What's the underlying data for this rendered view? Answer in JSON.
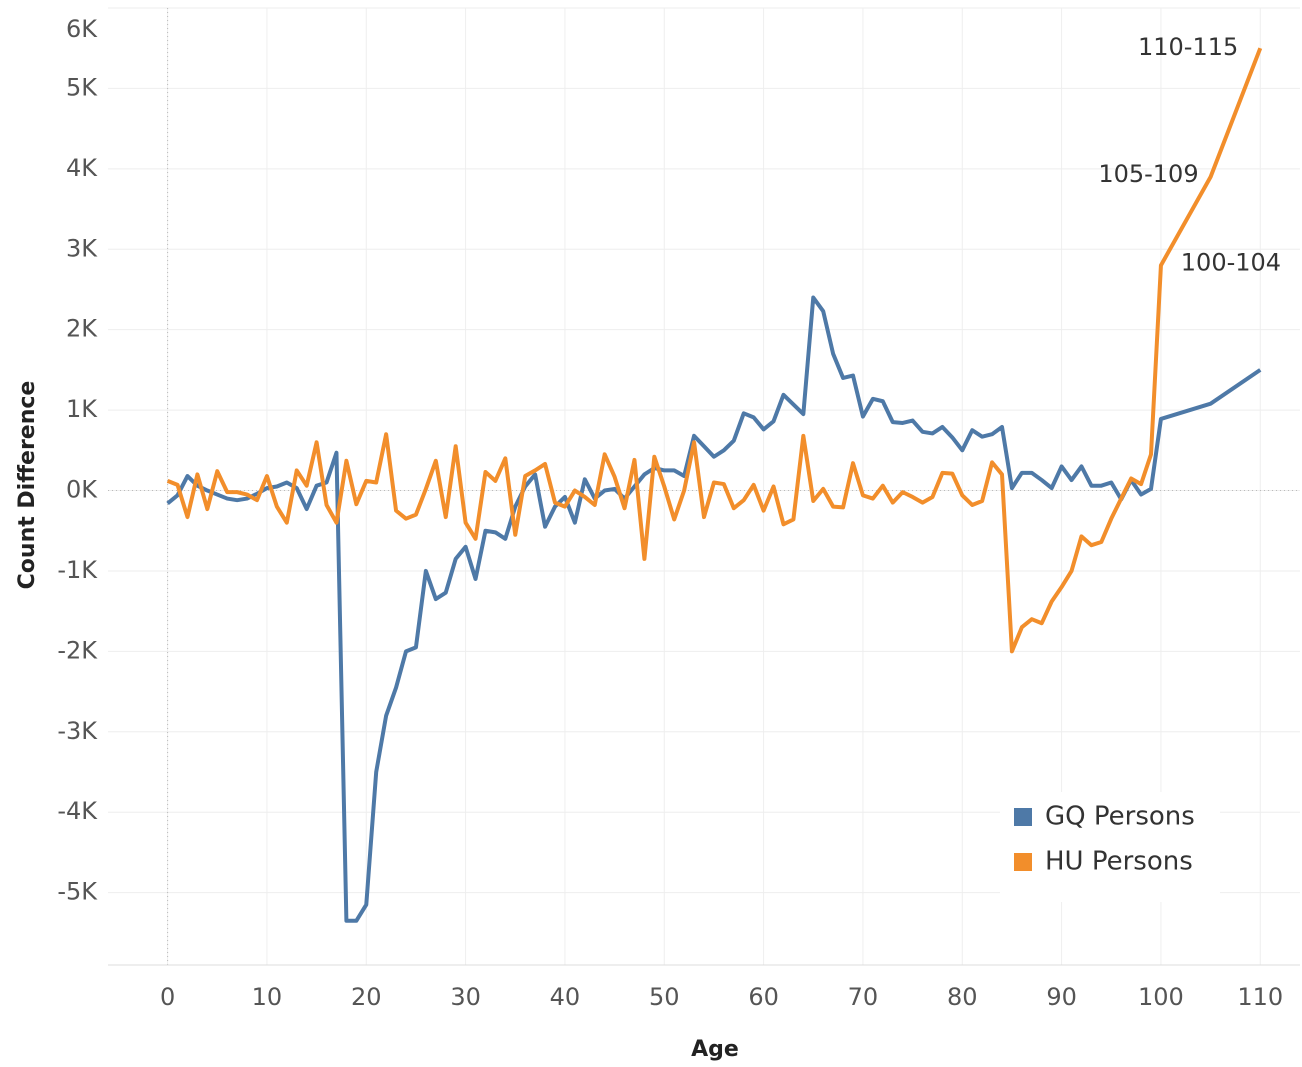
{
  "chart_data": {
    "type": "line",
    "xlabel": "Age",
    "ylabel": "Count Difference",
    "x": [
      0,
      1,
      2,
      3,
      4,
      5,
      6,
      7,
      8,
      9,
      10,
      11,
      12,
      13,
      14,
      15,
      16,
      17,
      18,
      19,
      20,
      21,
      22,
      23,
      24,
      25,
      26,
      27,
      28,
      29,
      30,
      31,
      32,
      33,
      34,
      35,
      36,
      37,
      38,
      39,
      40,
      41,
      42,
      43,
      44,
      45,
      46,
      47,
      48,
      49,
      50,
      51,
      52,
      53,
      54,
      55,
      56,
      57,
      58,
      59,
      60,
      61,
      62,
      63,
      64,
      65,
      66,
      67,
      68,
      69,
      70,
      71,
      72,
      73,
      74,
      75,
      76,
      77,
      78,
      79,
      80,
      81,
      82,
      83,
      84,
      85,
      86,
      87,
      88,
      89,
      90,
      91,
      92,
      93,
      94,
      95,
      96,
      97,
      98,
      99,
      100,
      105,
      110
    ],
    "series": [
      {
        "name": "GQ Persons",
        "color": "#4e79a7",
        "values": [
          -160,
          -60,
          180,
          60,
          0,
          -50,
          -100,
          -120,
          -100,
          -40,
          30,
          50,
          100,
          30,
          -230,
          60,
          100,
          470,
          -5350,
          -5350,
          -5150,
          -3500,
          -2800,
          -2450,
          -2000,
          -1950,
          -1000,
          -1350,
          -1270,
          -850,
          -700,
          -1100,
          -500,
          -520,
          -600,
          -200,
          50,
          200,
          -450,
          -200,
          -80,
          -400,
          140,
          -100,
          0,
          20,
          -100,
          50,
          200,
          280,
          250,
          250,
          180,
          680,
          550,
          420,
          500,
          620,
          960,
          910,
          760,
          860,
          1190,
          1070,
          950,
          2400,
          2230,
          1700,
          1400,
          1430,
          920,
          1140,
          1110,
          850,
          840,
          870,
          730,
          710,
          790,
          660,
          500,
          750,
          670,
          700,
          790,
          30,
          220,
          220,
          130,
          30,
          300,
          130,
          300,
          60,
          60,
          100,
          -110,
          130,
          -50,
          20,
          890,
          1080,
          1500
        ]
      },
      {
        "name": "HU Persons",
        "color": "#f28e2b",
        "values": [
          120,
          70,
          -330,
          200,
          -230,
          240,
          -20,
          -20,
          -50,
          -120,
          180,
          -200,
          -400,
          250,
          60,
          600,
          -180,
          -400,
          370,
          -170,
          120,
          100,
          700,
          -250,
          -350,
          -300,
          20,
          370,
          -330,
          550,
          -400,
          -600,
          230,
          120,
          400,
          -550,
          180,
          250,
          330,
          -150,
          -200,
          0,
          -80,
          -180,
          450,
          170,
          -220,
          380,
          -850,
          420,
          50,
          -360,
          0,
          600,
          -330,
          100,
          80,
          -220,
          -120,
          70,
          -250,
          50,
          -420,
          -360,
          680,
          -130,
          20,
          -200,
          -210,
          340,
          -60,
          -100,
          60,
          -150,
          -20,
          -80,
          -150,
          -80,
          220,
          210,
          -60,
          -180,
          -130,
          350,
          200,
          -2000,
          -1700,
          -1600,
          -1650,
          -1380,
          -1200,
          -1000,
          -570,
          -680,
          -640,
          -350,
          -100,
          150,
          80,
          450,
          2800,
          3900,
          5500
        ]
      }
    ],
    "annotations": [
      {
        "text": "100-104",
        "x": 100
      },
      {
        "text": "105-109",
        "x": 105
      },
      {
        "text": "110-115",
        "x": 110
      }
    ],
    "xlim": [
      -6,
      114
    ],
    "xticks": [
      0,
      10,
      20,
      30,
      40,
      50,
      60,
      70,
      80,
      90,
      100,
      110
    ],
    "ylim": [
      -5900,
      6000
    ],
    "yticks": [
      {
        "value": -5000,
        "label": "-5K"
      },
      {
        "value": -4000,
        "label": "-4K"
      },
      {
        "value": -3000,
        "label": "-3K"
      },
      {
        "value": -2000,
        "label": "-2K"
      },
      {
        "value": -1000,
        "label": "-1K"
      },
      {
        "value": 0,
        "label": "0K"
      },
      {
        "value": 1000,
        "label": "1K"
      },
      {
        "value": 2000,
        "label": "2K"
      },
      {
        "value": 3000,
        "label": "3K"
      },
      {
        "value": 4000,
        "label": "4K"
      },
      {
        "value": 5000,
        "label": "5K"
      },
      {
        "value": 6000,
        "label": "6K"
      }
    ],
    "grid": true,
    "legend": "lower right"
  }
}
